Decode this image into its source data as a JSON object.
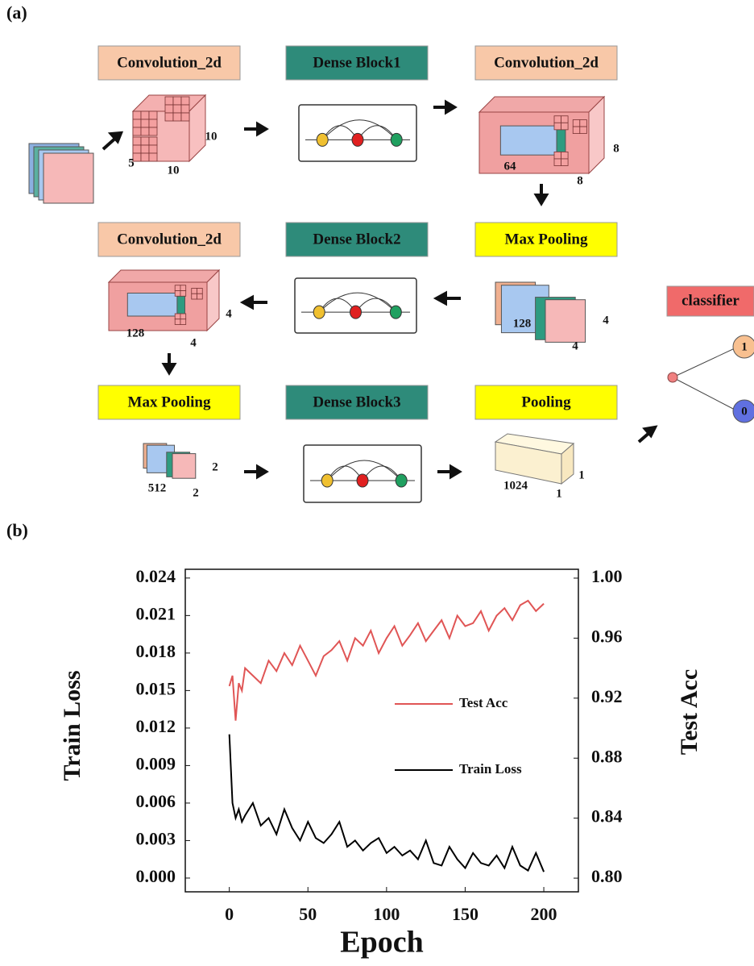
{
  "diagram": {
    "panel_label": "(a)",
    "stages": [
      {
        "label": "Convolution_2d",
        "dims": [
          5,
          10,
          10
        ]
      },
      {
        "label": "Dense Block1",
        "dims": []
      },
      {
        "label": "Convolution_2d",
        "dims": [
          64,
          8,
          8
        ]
      },
      {
        "label": "Max Pooling",
        "dims": [
          128,
          4,
          4
        ]
      },
      {
        "label": "Dense Block2",
        "dims": []
      },
      {
        "label": "Convolution_2d",
        "dims": [
          128,
          4,
          4
        ]
      },
      {
        "label": "Max Pooling",
        "dims": [
          512,
          2,
          2
        ]
      },
      {
        "label": "Dense Block3",
        "dims": []
      },
      {
        "label": "Pooling",
        "dims": [
          1024,
          1,
          1
        ]
      }
    ],
    "classifier": {
      "label": "classifier",
      "outputs": [
        1,
        0
      ]
    }
  },
  "chart_data": {
    "type": "line",
    "panel_label": "(b)",
    "x_label": "Epoch",
    "y_label": "Train Loss",
    "y2_label": "Test Acc",
    "x": [
      0,
      2,
      4,
      6,
      8,
      10,
      15,
      20,
      25,
      30,
      35,
      40,
      45,
      50,
      55,
      60,
      65,
      70,
      75,
      80,
      85,
      90,
      95,
      100,
      105,
      110,
      115,
      120,
      125,
      130,
      135,
      140,
      145,
      150,
      155,
      160,
      165,
      170,
      175,
      180,
      185,
      190,
      195,
      200
    ],
    "series": [
      {
        "name": "Test Acc",
        "color": "#e05555",
        "axis": "y2",
        "values": [
          0.928,
          0.935,
          0.905,
          0.93,
          0.925,
          0.94,
          0.935,
          0.93,
          0.945,
          0.938,
          0.95,
          0.942,
          0.955,
          0.945,
          0.935,
          0.948,
          0.952,
          0.958,
          0.945,
          0.96,
          0.955,
          0.965,
          0.95,
          0.96,
          0.968,
          0.955,
          0.962,
          0.97,
          0.958,
          0.965,
          0.972,
          0.96,
          0.975,
          0.968,
          0.97,
          0.978,
          0.965,
          0.975,
          0.98,
          0.972,
          0.982,
          0.985,
          0.978,
          0.983
        ]
      },
      {
        "name": "Train Loss",
        "color": "#000000",
        "values": [
          0.0115,
          0.006,
          0.0048,
          0.0055,
          0.0045,
          0.005,
          0.006,
          0.0042,
          0.0048,
          0.0035,
          0.0055,
          0.004,
          0.003,
          0.0045,
          0.0032,
          0.0028,
          0.0035,
          0.0045,
          0.0025,
          0.003,
          0.0022,
          0.0028,
          0.0032,
          0.002,
          0.0025,
          0.0018,
          0.0022,
          0.0015,
          0.003,
          0.0012,
          0.001,
          0.0025,
          0.0015,
          0.0008,
          0.002,
          0.0012,
          0.001,
          0.0018,
          0.0008,
          0.0025,
          0.001,
          0.0006,
          0.002,
          0.0005
        ]
      }
    ],
    "xlim": [
      -28,
      222
    ],
    "xticks": [
      0,
      50,
      100,
      150,
      200
    ],
    "ylim": [
      -0.0011,
      0.0247
    ],
    "yticks": [
      {
        "value": 0,
        "label": "0.000"
      },
      0.003,
      0.006,
      0.009,
      0.012,
      0.015,
      0.018,
      0.021,
      0.024
    ],
    "y2lim": [
      0.7909,
      1.0059
    ],
    "y2ticks": [
      {
        "value": 0.8,
        "label": "0.80"
      },
      0.84,
      0.88,
      0.92,
      0.96,
      {
        "value": 1,
        "label": "1.00"
      }
    ],
    "legend": "center right",
    "grid": false
  }
}
